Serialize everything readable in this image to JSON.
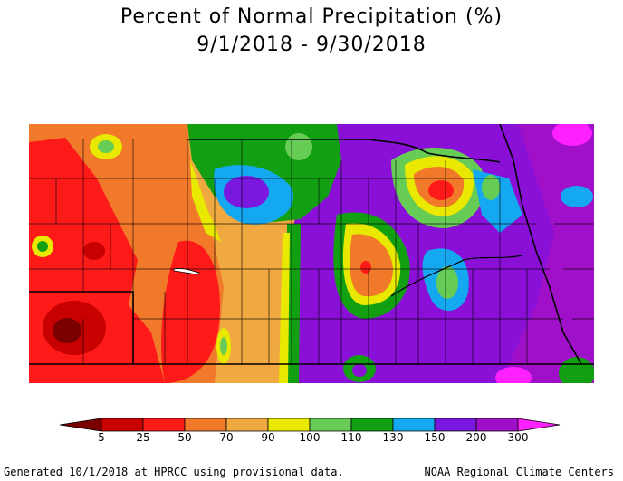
{
  "title": {
    "line1": "Percent of Normal Precipitation (%)",
    "line2": "9/1/2018 - 9/30/2018"
  },
  "legend": {
    "ticks": [
      "5",
      "25",
      "50",
      "70",
      "90",
      "100",
      "110",
      "130",
      "150",
      "200",
      "300"
    ],
    "colors": [
      "#7a0000",
      "#c80000",
      "#ff1a1a",
      "#f07a2a",
      "#f0a840",
      "#e8e800",
      "#66cc55",
      "#12a012",
      "#14a8f0",
      "#7a18e0",
      "#a010c8",
      "#ff20ff"
    ]
  },
  "footer": {
    "left": "Generated 10/1/2018 at HPRCC using provisional data.",
    "right": "NOAA Regional Climate Centers"
  }
}
